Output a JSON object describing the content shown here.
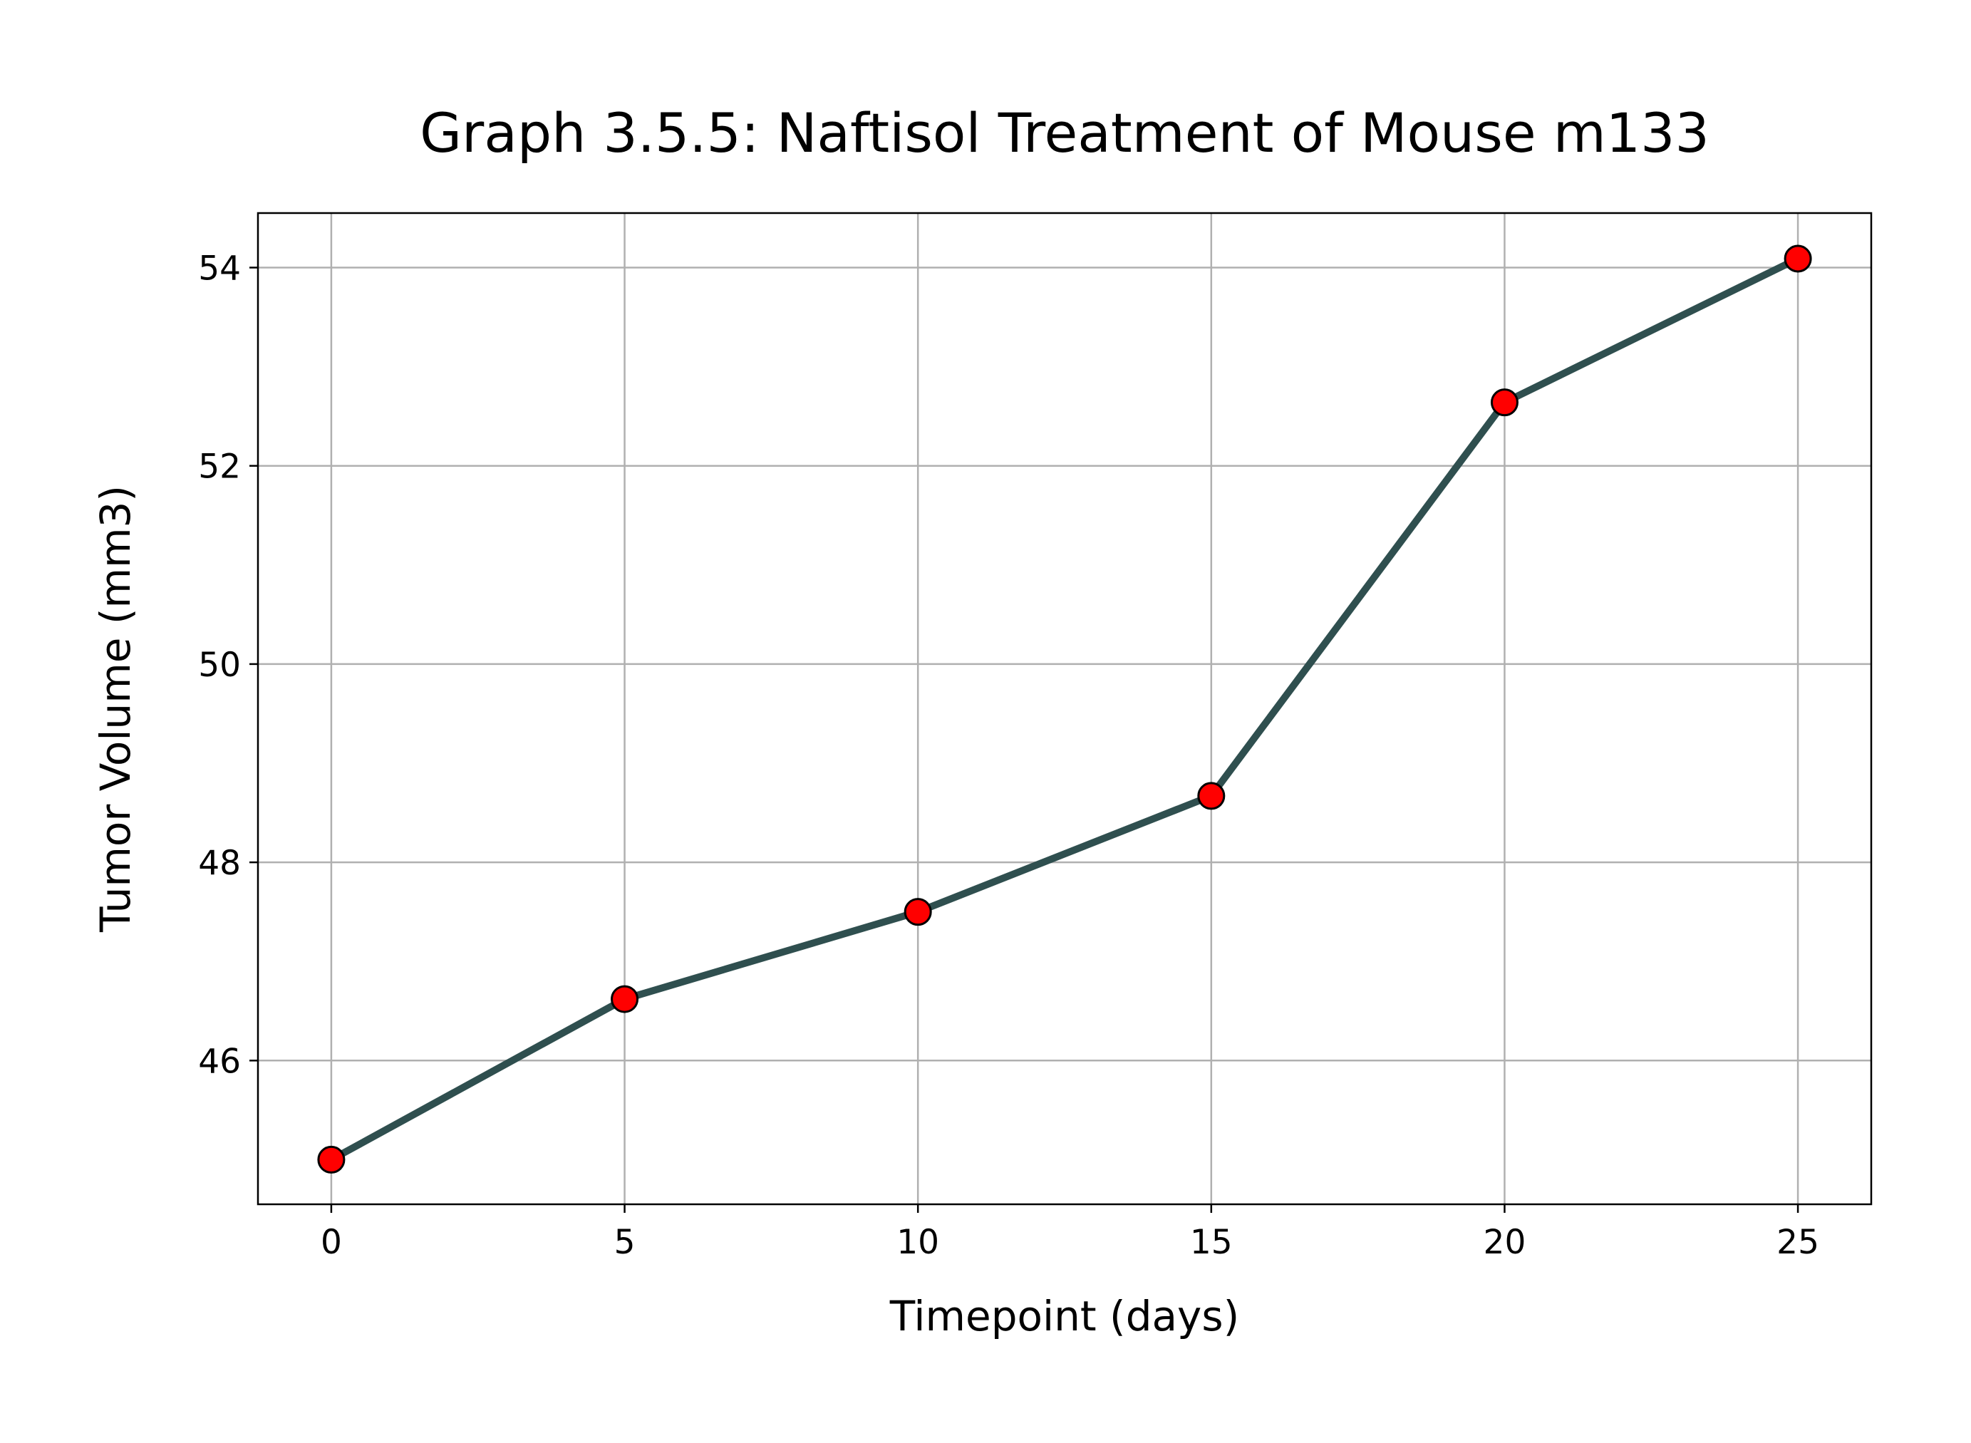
{
  "chart_data": {
    "type": "line",
    "title": "Graph 3.5.5: Naftisol Treatment of Mouse m133",
    "xlabel": "Timepoint (days)",
    "ylabel": "Tumor Volume (mm3)",
    "x": [
      0,
      5,
      10,
      15,
      20,
      25
    ],
    "series": [
      {
        "values": [
          45.0,
          46.62,
          47.5,
          48.67,
          52.64,
          54.09
        ]
      }
    ],
    "xticks": [
      0,
      5,
      10,
      15,
      20,
      25
    ],
    "xtick_labels": [
      "0",
      "5",
      "10",
      "15",
      "20",
      "25"
    ],
    "yticks": [
      46,
      48,
      50,
      52,
      54
    ],
    "ytick_labels": [
      "46",
      "48",
      "50",
      "52",
      "54"
    ],
    "xlim": [
      -1.25,
      26.25
    ],
    "ylim": [
      44.55,
      54.55
    ],
    "grid": true,
    "legend": "none",
    "colors": {
      "line": "#2f4f4f",
      "marker_fill": "#ff0000",
      "marker_edge": "#000000",
      "grid": "#b0b0b0",
      "axes": "#000000"
    }
  }
}
